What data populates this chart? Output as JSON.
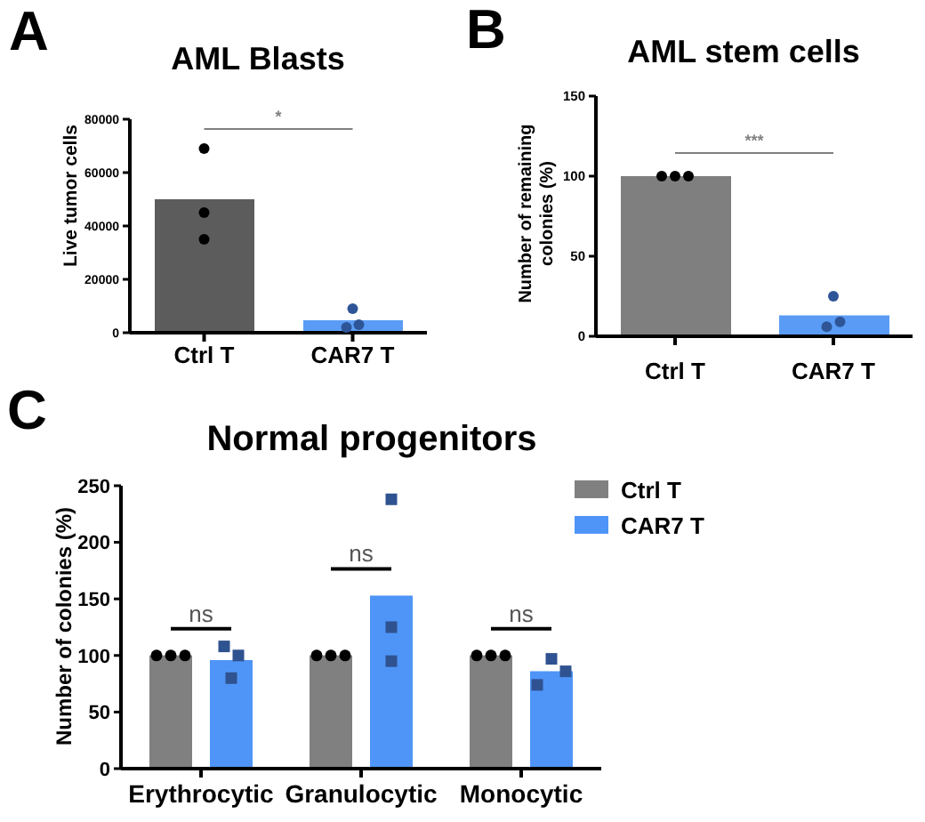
{
  "chart_data": [
    {
      "type": "bar",
      "title": "AML Blasts",
      "ylabel": "Live tumor cells",
      "categories": [
        "Ctrl T",
        "CAR7 T"
      ],
      "series": [
        {
          "type": "bar",
          "colors": [
            "#5c5c5c",
            "#5a9cf5"
          ],
          "values": [
            50000,
            4700
          ]
        },
        {
          "type": "scatter",
          "marker": "circle",
          "x": [
            "Ctrl T",
            "Ctrl T",
            "Ctrl T",
            "CAR7 T",
            "CAR7 T",
            "CAR7 T"
          ],
          "values": [
            69000,
            45000,
            35000,
            2000,
            9000,
            3000
          ],
          "colors": [
            "#000000",
            "#000000",
            "#000000",
            "#2e5597",
            "#2e5597",
            "#2e5597"
          ]
        }
      ],
      "ylim": [
        0,
        80000
      ],
      "yticks": [
        0,
        20000,
        40000,
        60000,
        80000
      ],
      "annotations": [
        "A",
        "*"
      ]
    },
    {
      "type": "bar",
      "title": "AML stem cells",
      "ylabel": "Number of remaining colonies (%)",
      "categories": [
        "Ctrl T",
        "CAR7 T"
      ],
      "series": [
        {
          "type": "bar",
          "colors": [
            "#7f7f7f",
            "#5a9cf5"
          ],
          "values": [
            100,
            13
          ]
        },
        {
          "type": "scatter",
          "marker": "circle",
          "x": [
            "Ctrl T",
            "Ctrl T",
            "Ctrl T",
            "CAR7 T",
            "CAR7 T",
            "CAR7 T"
          ],
          "values": [
            100,
            100,
            100,
            6,
            25,
            9
          ],
          "colors": [
            "#000000",
            "#000000",
            "#000000",
            "#2e5597",
            "#2e5597",
            "#2e5597"
          ]
        }
      ],
      "ylim": [
        0,
        150
      ],
      "yticks": [
        0,
        50,
        100,
        150
      ],
      "annotations": [
        "B",
        "***"
      ]
    },
    {
      "type": "bar",
      "title": "Normal progenitors",
      "ylabel": "Number of colonies (%)",
      "categories": [
        "Erythrocytic",
        "Granulocytic",
        "Monocytic"
      ],
      "series": [
        {
          "name": "Ctrl T",
          "type": "bar",
          "color": "#808080",
          "values": [
            100,
            100,
            100
          ]
        },
        {
          "name": "CAR7 T",
          "type": "bar",
          "color": "#4f95f7",
          "values": [
            96,
            153,
            86
          ]
        },
        {
          "type": "scatter",
          "marker": "circle",
          "color": "#000000",
          "x": [
            "Erythrocytic",
            "Erythrocytic",
            "Erythrocytic",
            "Granulocytic",
            "Granulocytic",
            "Granulocytic",
            "Monocytic",
            "Monocytic",
            "Monocytic"
          ],
          "values": [
            100,
            100,
            100,
            100,
            100,
            100,
            100,
            100,
            100
          ]
        },
        {
          "type": "scatter",
          "marker": "square",
          "color": "#2f5290",
          "x": [
            "Erythrocytic",
            "Erythrocytic",
            "Erythrocytic",
            "Granulocytic",
            "Granulocytic",
            "Granulocytic",
            "Monocytic",
            "Monocytic",
            "Monocytic"
          ],
          "values": [
            108,
            80,
            100,
            238,
            125,
            95,
            74,
            97,
            86
          ]
        }
      ],
      "ylim": [
        0,
        250
      ],
      "yticks": [
        0,
        50,
        100,
        150,
        200,
        250
      ],
      "legend": "top right",
      "annotations": [
        "C",
        "ns",
        "ns",
        "ns"
      ]
    }
  ]
}
